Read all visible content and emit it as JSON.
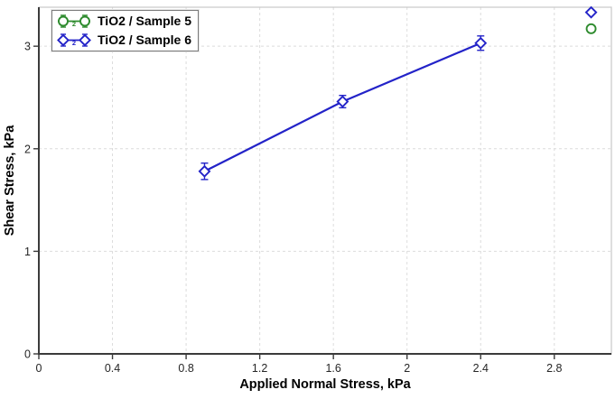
{
  "figure": {
    "background": "#ffffff"
  },
  "chart_data": {
    "type": "scatter",
    "title": "",
    "xlabel": "Applied Normal Stress, kPa",
    "ylabel": "Shear Stress, kPa",
    "xlim": [
      0,
      3.11
    ],
    "ylim": [
      0,
      3.38
    ],
    "x_ticks": {
      "values": [
        0,
        0.4,
        0.8,
        1.2,
        1.6,
        2,
        2.4,
        2.8
      ],
      "labels": [
        "0",
        "0.4",
        "0.8",
        "1.2",
        "1.6",
        "2",
        "2.4",
        "2.8"
      ]
    },
    "y_ticks": {
      "values": [
        0,
        1,
        2,
        3
      ],
      "labels": [
        "0",
        "1",
        "2",
        "3"
      ]
    },
    "grid": {
      "show": true,
      "style": "dashed",
      "color": "#dcdcdc"
    },
    "legend": {
      "position": "top-left",
      "badge": "2",
      "border_color": "#7a7a7a"
    },
    "series": [
      {
        "name": "TiO2 / Sample 5",
        "marker": "circle",
        "color": "#2e8b2e",
        "connected_points": 0,
        "points": [
          {
            "x": 3.0,
            "y": 3.17
          }
        ]
      },
      {
        "name": "TiO2 / Sample 6",
        "marker": "diamond",
        "color": "#2323c8",
        "connected_points": 3,
        "points": [
          {
            "x": 0.9,
            "y": 1.78,
            "err": 0.08
          },
          {
            "x": 1.65,
            "y": 2.46,
            "err": 0.06
          },
          {
            "x": 2.4,
            "y": 3.03,
            "err": 0.07
          },
          {
            "x": 3.0,
            "y": 3.33
          }
        ]
      }
    ]
  },
  "colors": {
    "axis": "#3b3b3b",
    "tick_label": "#262626",
    "plot_border": "#c8c8c8",
    "gridline": "#dcdcdc"
  }
}
